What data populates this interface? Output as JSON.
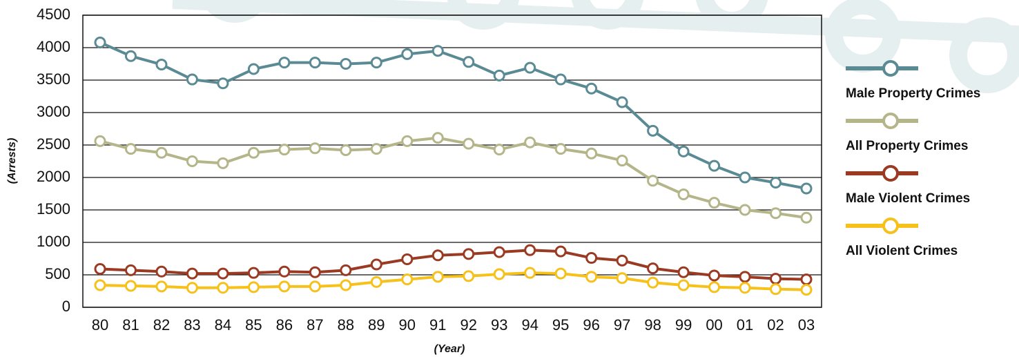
{
  "chart_data": {
    "type": "line",
    "x_label": "(Year)",
    "y_label": "(Arrests)",
    "categories": [
      "80",
      "81",
      "82",
      "83",
      "84",
      "85",
      "86",
      "87",
      "88",
      "89",
      "90",
      "91",
      "92",
      "93",
      "94",
      "95",
      "96",
      "97",
      "98",
      "99",
      "00",
      "01",
      "02",
      "03"
    ],
    "series": [
      {
        "name": "Male Property Crimes",
        "color": "#5a8a93",
        "values": [
          4080,
          3870,
          3740,
          3510,
          3450,
          3670,
          3770,
          3770,
          3750,
          3770,
          3900,
          3950,
          3780,
          3570,
          3690,
          3510,
          3370,
          3160,
          2720,
          2400,
          2180,
          2000,
          1920,
          1830
        ]
      },
      {
        "name": "All Property Crimes",
        "color": "#b5b58a",
        "values": [
          2560,
          2440,
          2380,
          2250,
          2220,
          2380,
          2430,
          2450,
          2420,
          2440,
          2560,
          2610,
          2520,
          2430,
          2540,
          2440,
          2370,
          2260,
          1950,
          1740,
          1610,
          1500,
          1450,
          1380
        ]
      },
      {
        "name": "Male Violent Crimes",
        "color": "#9b3a22",
        "values": [
          590,
          570,
          550,
          520,
          520,
          530,
          550,
          540,
          570,
          660,
          740,
          800,
          820,
          850,
          880,
          860,
          760,
          720,
          600,
          540,
          490,
          470,
          440,
          430
        ]
      },
      {
        "name": "All Violent Crimes",
        "color": "#f5c11a",
        "values": [
          340,
          330,
          320,
          300,
          300,
          310,
          320,
          320,
          340,
          390,
          430,
          470,
          480,
          510,
          530,
          520,
          470,
          450,
          380,
          340,
          310,
          300,
          280,
          270
        ]
      }
    ],
    "ylim": [
      0,
      4500
    ],
    "yticks": [
      0,
      500,
      1000,
      1500,
      2000,
      2500,
      3000,
      3500,
      4000,
      4500
    ],
    "grid": true,
    "legend": "right"
  }
}
